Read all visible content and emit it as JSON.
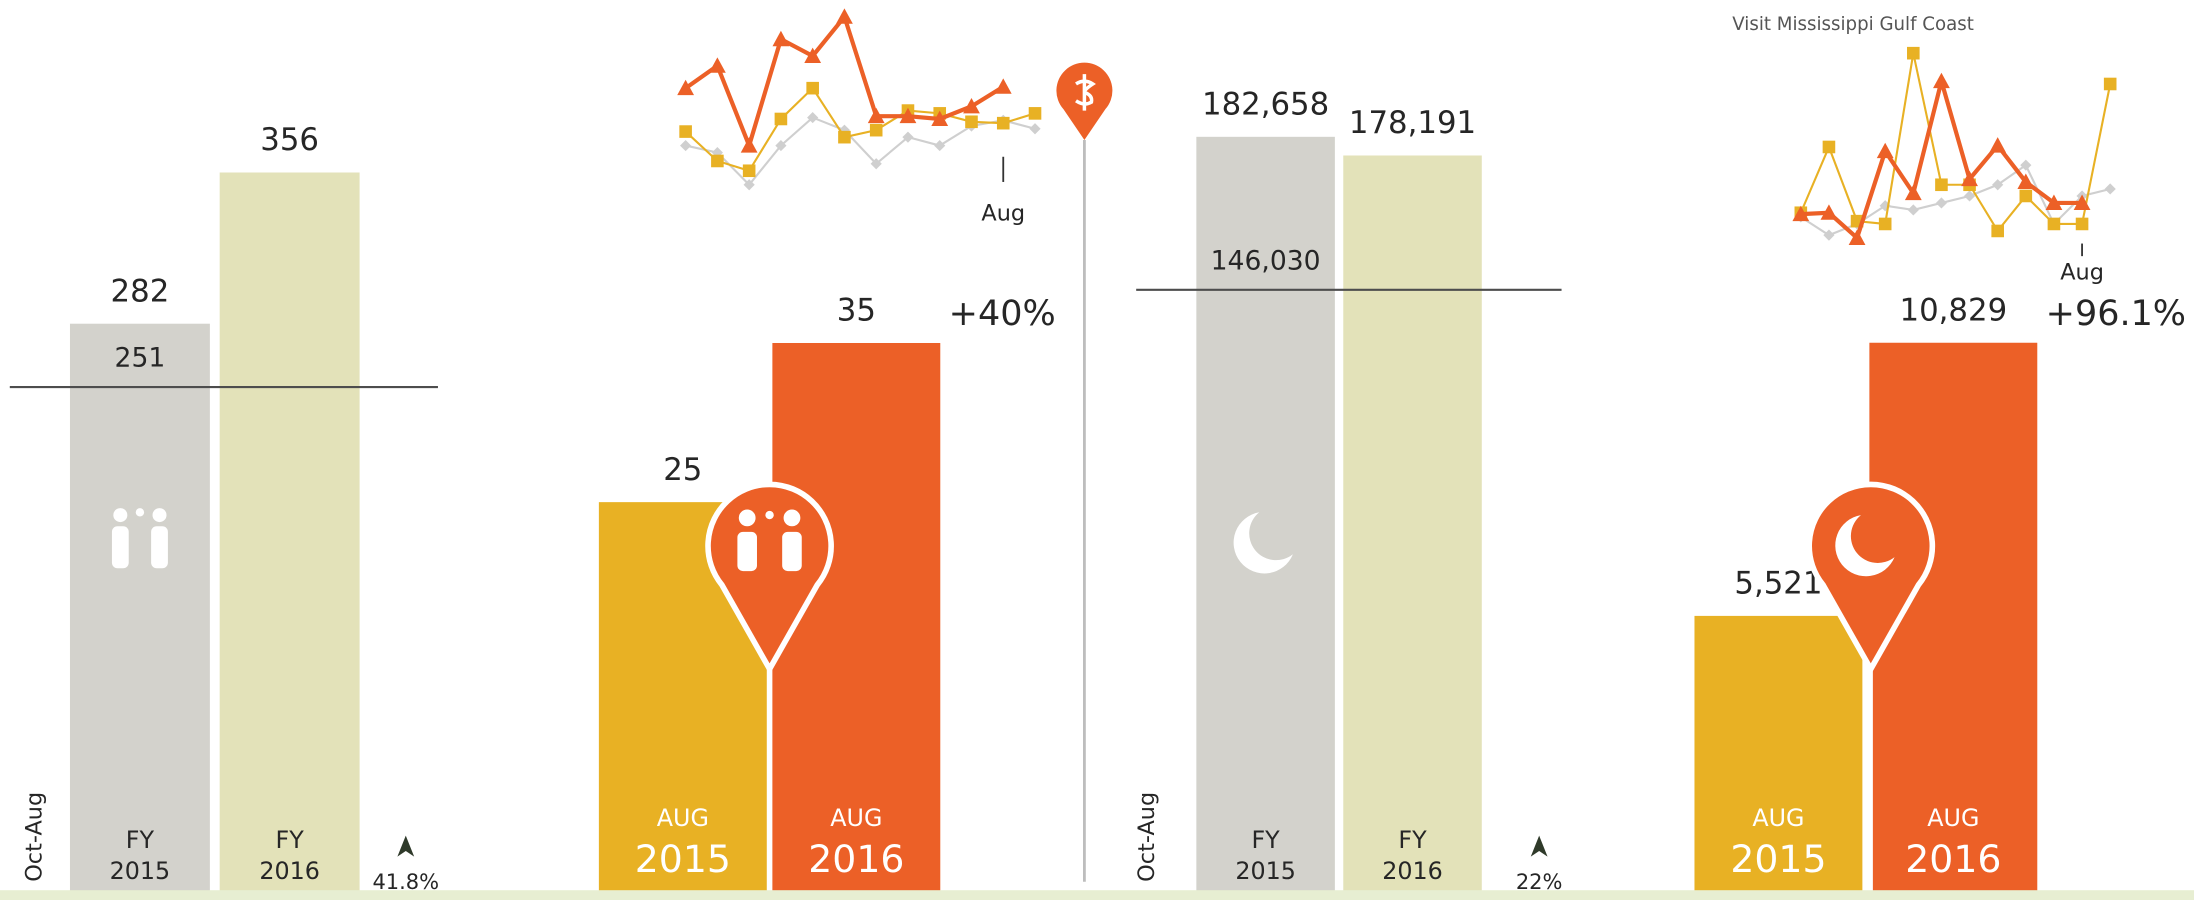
{
  "chart_data": [
    {
      "type": "bar",
      "axis_label": "Oct-Aug",
      "categories": [
        "FY 2015",
        "FY 2016"
      ],
      "values": [
        282,
        356
      ],
      "colors": [
        "#d3d2cc",
        "#e3e2b9"
      ],
      "reference": 251,
      "change": "41.8%"
    },
    {
      "type": "line",
      "categories": [
        null,
        null,
        null,
        null,
        null,
        null,
        null,
        null,
        null,
        null,
        "Aug",
        null
      ],
      "series": [
        {
          "color": "#ec6027",
          "marker": "triangle",
          "values": [
            77,
            93,
            36,
            112,
            100,
            128,
            57,
            57,
            55,
            64,
            78,
            null
          ]
        },
        {
          "color": "#e8b124",
          "marker": "square",
          "values": [
            46,
            25,
            18,
            55,
            77,
            42,
            47,
            61,
            59,
            53,
            52,
            59
          ]
        },
        {
          "color": "#cfcfcf",
          "marker": "diamond",
          "values": [
            36,
            31,
            8,
            36,
            56,
            47,
            23,
            42,
            36,
            50,
            54,
            48
          ]
        }
      ]
    },
    {
      "type": "bar",
      "categories": [
        "AUG 2015",
        "AUG 2016"
      ],
      "values": [
        25,
        35
      ],
      "colors": [
        "#e8b124",
        "#ec6027"
      ],
      "change": "+40%"
    },
    {
      "type": "bar",
      "axis_label": "Oct-Aug",
      "categories": [
        "FY 2015",
        "FY 2016"
      ],
      "values": [
        182658,
        178191
      ],
      "value_labels": [
        "182,658",
        "178,191"
      ],
      "colors": [
        "#d3d2cc",
        "#e3e2b9"
      ],
      "reference": {
        "value": 146030,
        "label": "146,030"
      },
      "change": "22%"
    },
    {
      "type": "line",
      "title": "Visit Mississippi Gulf Coast",
      "categories": [
        null,
        null,
        null,
        null,
        null,
        null,
        null,
        null,
        null,
        null,
        "Aug",
        null
      ],
      "series": [
        {
          "color": "#ec6027",
          "marker": "triangle",
          "values": [
            27,
            28,
            10,
            72,
            42,
            122,
            52,
            76,
            50,
            35,
            35,
            null
          ]
        },
        {
          "color": "#e8b124",
          "marker": "square",
          "values": [
            28,
            75,
            22,
            20,
            142,
            48,
            48,
            15,
            40,
            20,
            20,
            120
          ]
        },
        {
          "color": "#cfcfcf",
          "marker": "diamond",
          "values": [
            25,
            12,
            20,
            33,
            30,
            35,
            40,
            48,
            62,
            20,
            40,
            45
          ]
        }
      ]
    },
    {
      "type": "bar",
      "categories": [
        "AUG 2015",
        "AUG 2016"
      ],
      "values": [
        5521,
        10829
      ],
      "value_labels": [
        "5,521",
        "10,829"
      ],
      "colors": [
        "#e8b124",
        "#ec6027"
      ],
      "change": "+96.1%"
    }
  ]
}
